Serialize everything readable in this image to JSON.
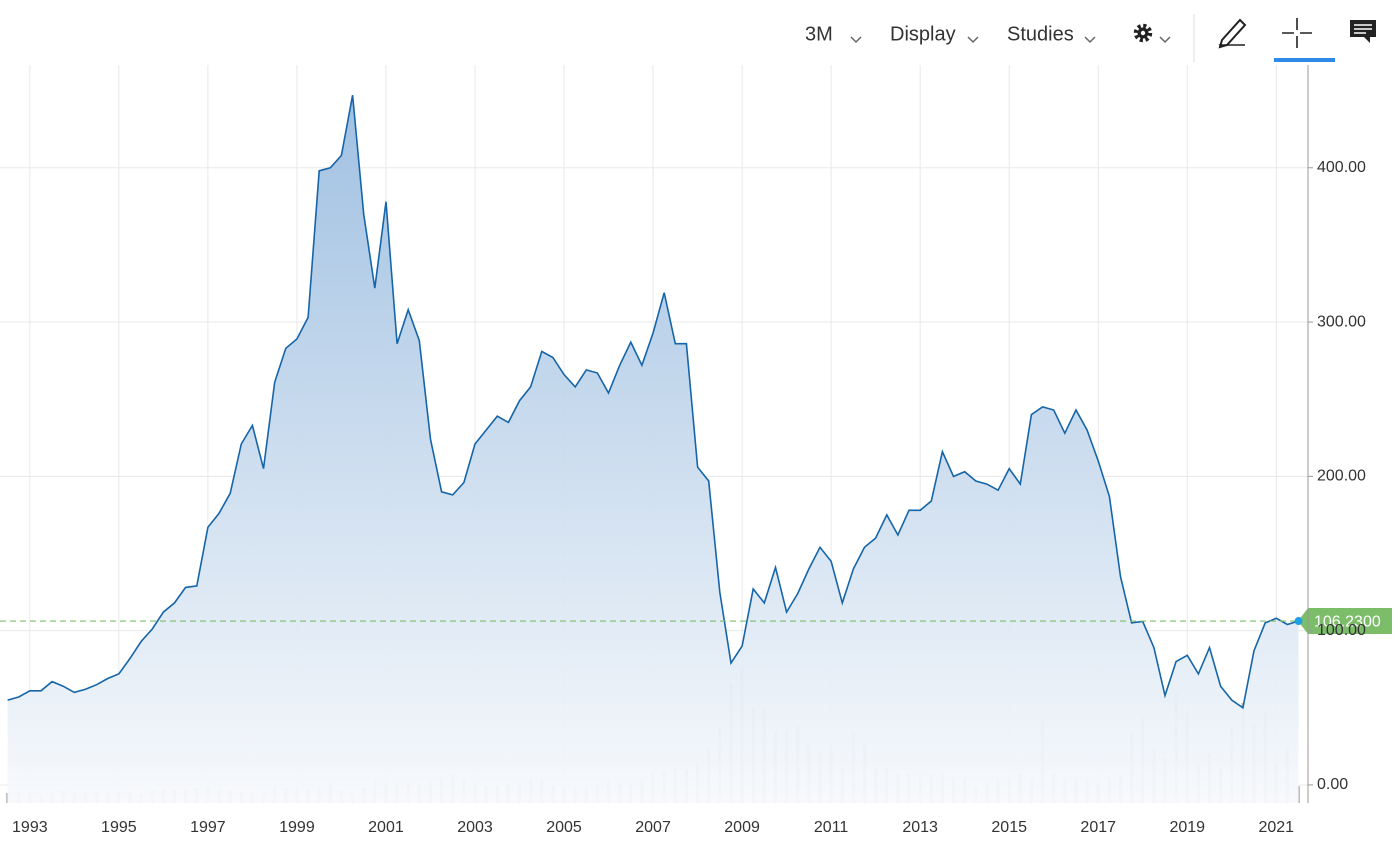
{
  "toolbar": {
    "period": "3M",
    "display": "Display",
    "studies": "Studies"
  },
  "chart_data": {
    "type": "area",
    "x": [
      1992.5,
      1992.75,
      1993,
      1993.25,
      1993.5,
      1993.75,
      1994,
      1994.25,
      1994.5,
      1994.75,
      1995,
      1995.25,
      1995.5,
      1995.75,
      1996,
      1996.25,
      1996.5,
      1996.75,
      1997,
      1997.25,
      1997.5,
      1997.75,
      1998,
      1998.25,
      1998.5,
      1998.75,
      1999,
      1999.25,
      1999.5,
      1999.75,
      2000,
      2000.25,
      2000.5,
      2000.75,
      2001,
      2001.25,
      2001.5,
      2001.75,
      2002,
      2002.25,
      2002.5,
      2002.75,
      2003,
      2003.25,
      2003.5,
      2003.75,
      2004,
      2004.25,
      2004.5,
      2004.75,
      2005,
      2005.25,
      2005.5,
      2005.75,
      2006,
      2006.25,
      2006.5,
      2006.75,
      2007,
      2007.25,
      2007.5,
      2007.75,
      2008,
      2008.25,
      2008.5,
      2008.75,
      2009,
      2009.25,
      2009.5,
      2009.75,
      2010,
      2010.25,
      2010.5,
      2010.75,
      2011,
      2011.25,
      2011.5,
      2011.75,
      2012,
      2012.25,
      2012.5,
      2012.75,
      2013,
      2013.25,
      2013.5,
      2013.75,
      2014,
      2014.25,
      2014.5,
      2014.75,
      2015,
      2015.25,
      2015.5,
      2015.75,
      2016,
      2016.25,
      2016.5,
      2016.75,
      2017,
      2017.25,
      2017.5,
      2017.75,
      2018,
      2018.25,
      2018.5,
      2018.75,
      2019,
      2019.25,
      2019.5,
      2019.75,
      2020,
      2020.25,
      2020.5,
      2020.75,
      2021,
      2021.25,
      2021.5
    ],
    "series": [
      {
        "color": "#1565a8",
        "values": [
          55,
          57,
          61,
          61,
          67,
          64,
          60,
          62,
          65,
          69,
          72,
          82,
          93,
          101,
          112,
          118,
          128,
          129,
          167,
          176,
          189,
          221,
          233,
          205,
          261,
          283,
          289,
          303,
          398,
          400,
          408,
          447,
          370,
          322,
          378,
          286,
          308,
          288,
          224,
          190,
          188,
          196,
          221,
          230,
          239,
          235,
          249,
          258,
          281,
          277,
          266,
          258,
          269,
          267,
          254,
          272,
          287,
          272,
          293,
          319,
          286,
          286,
          206,
          197,
          125,
          79,
          90,
          127,
          118,
          141,
          112,
          124,
          140,
          154,
          145,
          118,
          140,
          154,
          160,
          175,
          162,
          178,
          178,
          184,
          216,
          200,
          203,
          197,
          195,
          191,
          205,
          195,
          240,
          245,
          243,
          228,
          243,
          230,
          210,
          187,
          135,
          105,
          106,
          89,
          58,
          80,
          84,
          72,
          89,
          64,
          55,
          50,
          87,
          105,
          108,
          104,
          106.23
        ]
      }
    ],
    "volume": {
      "color": "#bdbdbd",
      "values": [
        10,
        11,
        10,
        9,
        10,
        12,
        10,
        10,
        11,
        10,
        11,
        10,
        9,
        13,
        13,
        13,
        13,
        15,
        15,
        13,
        13,
        11,
        10,
        10,
        16,
        15,
        14,
        13,
        15,
        20,
        13,
        10,
        15,
        22,
        20,
        20,
        20,
        18,
        22,
        25,
        28,
        25,
        20,
        17,
        17,
        18,
        20,
        24,
        24,
        17,
        15,
        15,
        17,
        18,
        22,
        20,
        20,
        24,
        30,
        32,
        35,
        33,
        40,
        55,
        75,
        120,
        138,
        95,
        93,
        72,
        73,
        77,
        58,
        50,
        53,
        35,
        70,
        60,
        35,
        35,
        30,
        30,
        28,
        28,
        30,
        25,
        25,
        15,
        20,
        25,
        25,
        30,
        25,
        85,
        30,
        25,
        25,
        25,
        20,
        25,
        28,
        70,
        85,
        55,
        45,
        110,
        90,
        40,
        50,
        35,
        75,
        100,
        80,
        90,
        40,
        55,
        17
      ],
      "vlim": [
        0,
        180
      ]
    },
    "last_label": "106.2300",
    "last_color": "#7cbd6a",
    "xlim": [
      1992.33,
      2021.6
    ],
    "xticks": [
      1993,
      1995,
      1997,
      1999,
      2001,
      2003,
      2005,
      2007,
      2009,
      2011,
      2013,
      2015,
      2017,
      2019,
      2021
    ],
    "ylim": [
      -11.7,
      466.6
    ],
    "yticks": [
      {
        "value": 0,
        "label": "0.00"
      },
      {
        "value": 100,
        "label": "100.00"
      },
      {
        "value": 200,
        "label": "200.00"
      },
      {
        "value": 300,
        "label": "300.00"
      },
      {
        "value": 400,
        "label": "400.00"
      }
    ],
    "grid": true
  }
}
